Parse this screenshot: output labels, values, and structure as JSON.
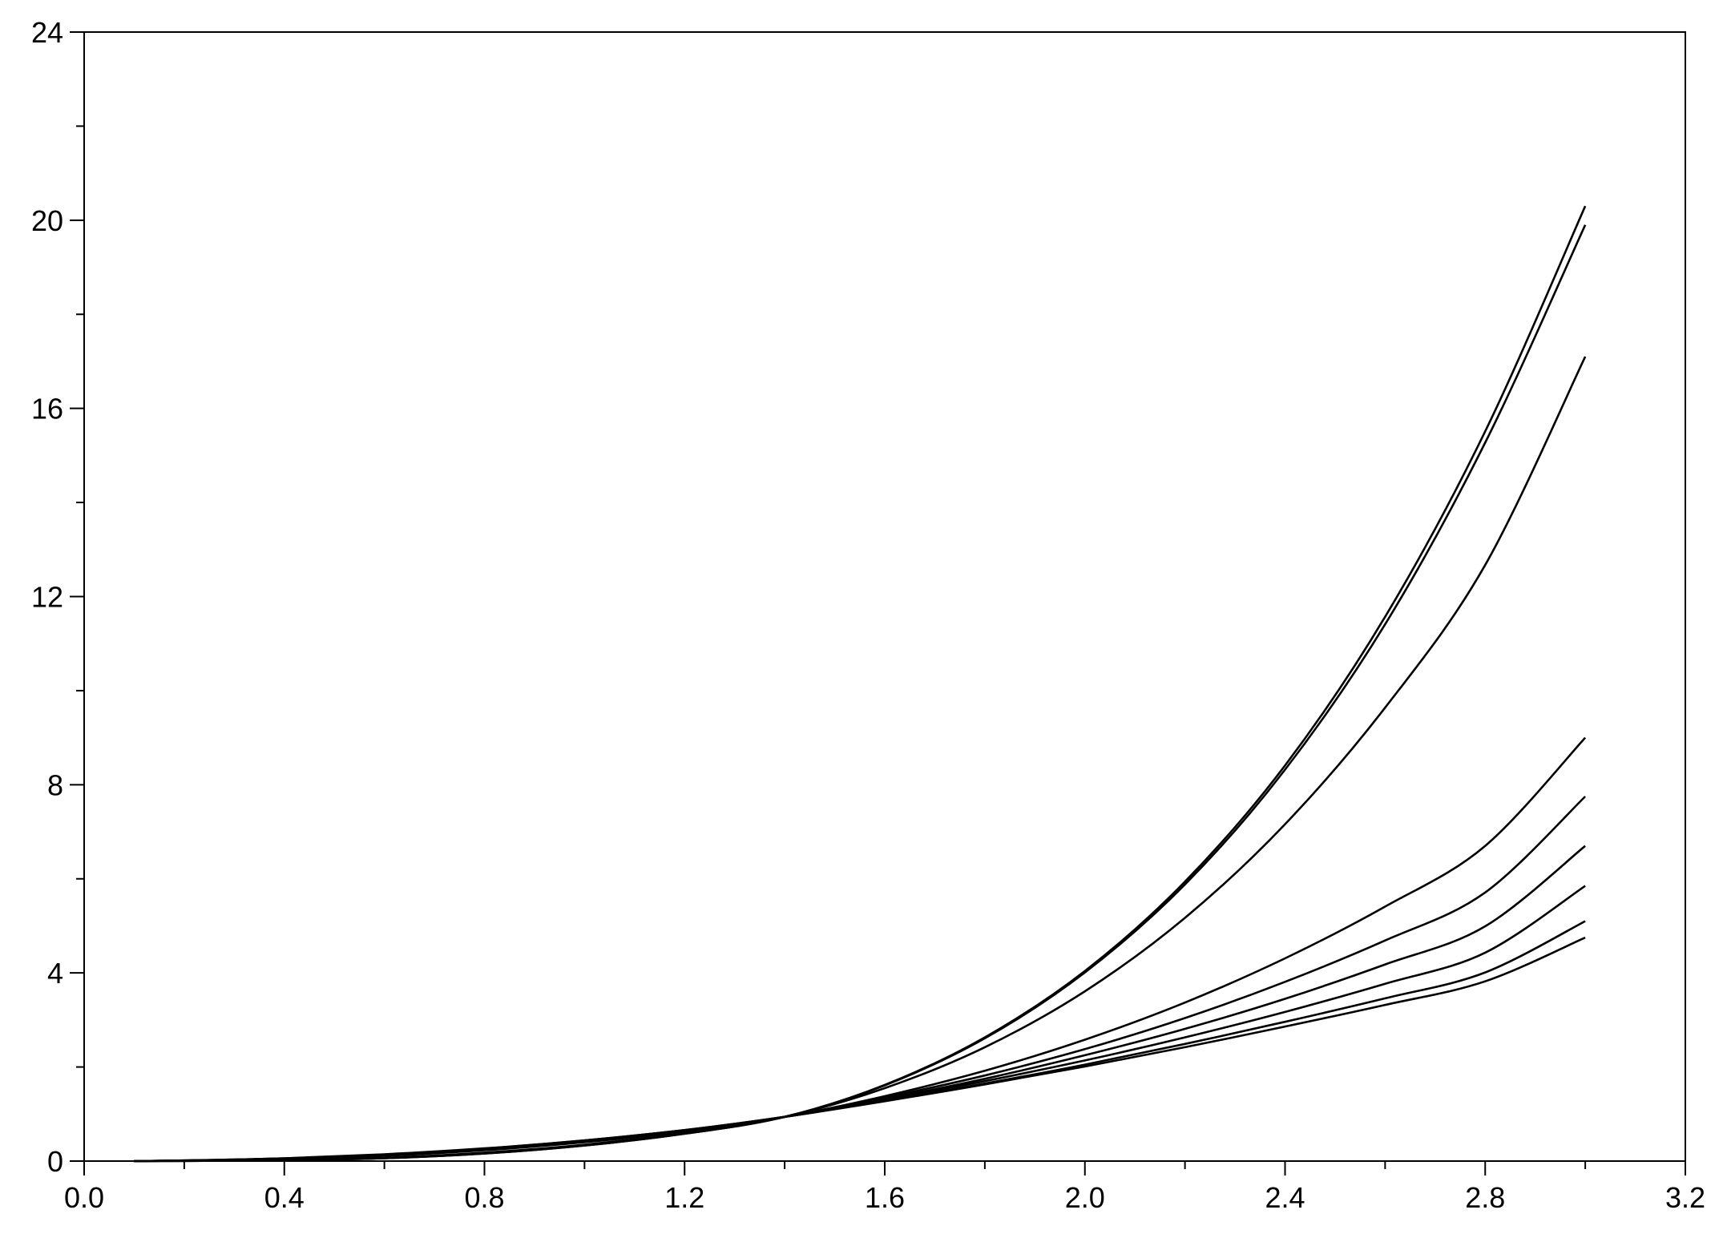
{
  "chart_data": {
    "type": "line",
    "title": "",
    "xlabel": "",
    "ylabel": "",
    "xlim": [
      0.0,
      3.2
    ],
    "ylim": [
      0,
      24
    ],
    "grid": false,
    "legend": "none",
    "x_ticks": [
      "0.0",
      "0.4",
      "0.8",
      "1.2",
      "1.6",
      "2.0",
      "2.4",
      "2.8",
      "3.2"
    ],
    "y_ticks": [
      "0",
      "4",
      "8",
      "12",
      "16",
      "20",
      "24"
    ],
    "x_minor_step": 0.2,
    "y_minor_step": 2,
    "line_color": "#000000",
    "x": [
      0.1,
      0.2,
      0.4,
      0.6,
      0.8,
      1.0,
      1.2,
      1.4,
      1.6,
      1.8,
      2.0,
      2.2,
      2.4,
      2.6,
      2.8,
      3.0
    ],
    "series": [
      {
        "values": [
          0.0,
          0.003,
          0.018,
          0.06,
          0.16,
          0.33,
          0.58,
          0.94,
          1.62,
          2.63,
          4.04,
          5.94,
          8.41,
          11.57,
          15.51,
          20.3
        ]
      },
      {
        "values": [
          0.0,
          0.003,
          0.018,
          0.06,
          0.16,
          0.33,
          0.58,
          0.94,
          1.61,
          2.61,
          4.01,
          5.88,
          8.32,
          11.41,
          15.27,
          19.9
        ]
      },
      {
        "values": [
          0.0,
          0.004,
          0.021,
          0.07,
          0.18,
          0.35,
          0.6,
          0.94,
          1.55,
          2.42,
          3.61,
          5.17,
          7.16,
          9.64,
          12.67,
          17.1
        ]
      },
      {
        "values": [
          0.0,
          0.008,
          0.04,
          0.11,
          0.23,
          0.4,
          0.63,
          0.94,
          1.38,
          1.92,
          2.58,
          3.37,
          4.31,
          5.41,
          6.7,
          9.0
        ]
      },
      {
        "values": [
          0.0,
          0.009,
          0.045,
          0.12,
          0.24,
          0.41,
          0.64,
          0.94,
          1.35,
          1.82,
          2.38,
          3.04,
          3.81,
          4.69,
          5.71,
          7.75
        ]
      },
      {
        "values": [
          0.0,
          0.011,
          0.05,
          0.13,
          0.25,
          0.42,
          0.65,
          0.94,
          1.32,
          1.75,
          2.25,
          2.81,
          3.45,
          4.18,
          4.99,
          6.7
        ]
      },
      {
        "values": [
          0.0,
          0.012,
          0.055,
          0.135,
          0.26,
          0.43,
          0.65,
          0.94,
          1.3,
          1.7,
          2.14,
          2.63,
          3.17,
          3.77,
          4.43,
          5.85
        ]
      },
      {
        "values": [
          0.0,
          0.013,
          0.058,
          0.14,
          0.265,
          0.44,
          0.66,
          0.94,
          1.28,
          1.65,
          2.05,
          2.49,
          2.96,
          3.46,
          4.01,
          5.1
        ]
      },
      {
        "values": [
          0.0,
          0.014,
          0.06,
          0.145,
          0.27,
          0.44,
          0.66,
          0.94,
          1.27,
          1.63,
          2.01,
          2.42,
          2.86,
          3.32,
          3.82,
          4.75
        ]
      }
    ]
  }
}
